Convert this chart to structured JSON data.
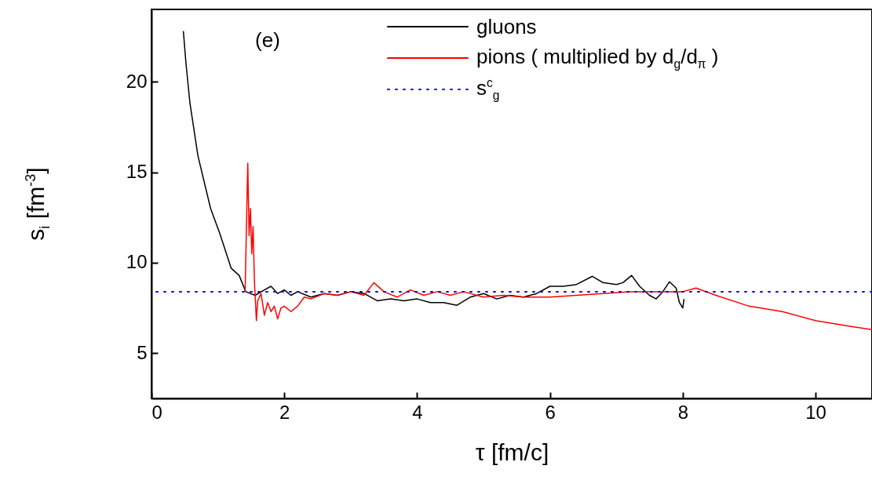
{
  "chart_data": {
    "type": "line",
    "xlabel": "τ  [fm/c]",
    "ylabel": "s$_{i}$  [fm$^{-3}$]",
    "annotations": [
      "(e)"
    ],
    "xlim": [
      0,
      10.85
    ],
    "xticks": [
      0,
      2,
      4,
      6,
      8,
      10
    ],
    "ylim": [
      2.5,
      24
    ],
    "yticks": [
      5,
      10,
      15,
      20
    ],
    "grid": false,
    "legend": "top right",
    "line_style": "solid",
    "marker": "none",
    "ref_lines": [
      {
        "axis": "y",
        "value": 8.4,
        "label": "s$^{c}$$_{g}$",
        "color": "#0000ff",
        "line_style": "dotted"
      }
    ],
    "series": [
      {
        "name": "gluons",
        "color": "#000000",
        "x": [
          0.48,
          0.52,
          0.58,
          0.7,
          0.89,
          1.03,
          1.2,
          1.32,
          1.42,
          1.56,
          1.7,
          1.8,
          1.9,
          2.0,
          2.1,
          2.2,
          2.4,
          2.6,
          2.8,
          3.0,
          3.2,
          3.4,
          3.6,
          3.8,
          4.0,
          4.2,
          4.4,
          4.6,
          4.8,
          5.0,
          5.2,
          5.4,
          5.6,
          5.8,
          6.0,
          6.2,
          6.4,
          6.64,
          6.8,
          7.0,
          7.1,
          7.23,
          7.35,
          7.5,
          7.6,
          7.7,
          7.8,
          7.9,
          7.95,
          8.0,
          8.02
        ],
        "values": [
          22.8,
          21.0,
          18.8,
          15.9,
          13.0,
          11.6,
          9.7,
          9.3,
          8.4,
          8.2,
          8.5,
          8.7,
          8.3,
          8.5,
          8.2,
          8.4,
          8.1,
          8.3,
          8.2,
          8.4,
          8.3,
          7.9,
          8.0,
          7.9,
          8.0,
          7.8,
          7.8,
          7.65,
          8.1,
          8.3,
          8.0,
          8.2,
          8.1,
          8.3,
          8.7,
          8.7,
          8.8,
          9.25,
          8.9,
          8.8,
          8.9,
          9.3,
          8.7,
          8.2,
          8.0,
          8.4,
          8.95,
          8.6,
          7.8,
          7.5,
          8.0
        ]
      },
      {
        "name": "pions ( multiplied by d$_{g}$/d$_{π}$ )",
        "color": "#ff0000",
        "x": [
          1.41,
          1.43,
          1.45,
          1.47,
          1.49,
          1.51,
          1.53,
          1.55,
          1.58,
          1.6,
          1.65,
          1.7,
          1.75,
          1.8,
          1.85,
          1.9,
          1.95,
          2.0,
          2.1,
          2.2,
          2.3,
          2.4,
          2.6,
          2.8,
          3.0,
          3.2,
          3.35,
          3.5,
          3.7,
          3.9,
          4.1,
          4.3,
          4.5,
          4.7,
          5.0,
          5.3,
          5.6,
          6.0,
          6.4,
          6.8,
          7.2,
          7.6,
          8.0,
          8.2,
          8.5,
          9.0,
          9.5,
          10.0,
          10.5,
          10.85
        ],
        "values": [
          8.4,
          12.0,
          15.5,
          11.5,
          13.0,
          10.5,
          12.0,
          9.0,
          6.8,
          7.9,
          8.3,
          7.1,
          7.8,
          7.3,
          7.6,
          6.9,
          7.5,
          7.6,
          7.3,
          7.6,
          8.1,
          8.0,
          8.3,
          8.2,
          8.4,
          8.2,
          8.9,
          8.4,
          8.1,
          8.5,
          8.2,
          8.4,
          8.2,
          8.4,
          8.1,
          8.2,
          8.1,
          8.1,
          8.2,
          8.3,
          8.4,
          8.4,
          8.4,
          8.6,
          8.2,
          7.6,
          7.3,
          6.8,
          6.5,
          6.3
        ]
      }
    ]
  }
}
